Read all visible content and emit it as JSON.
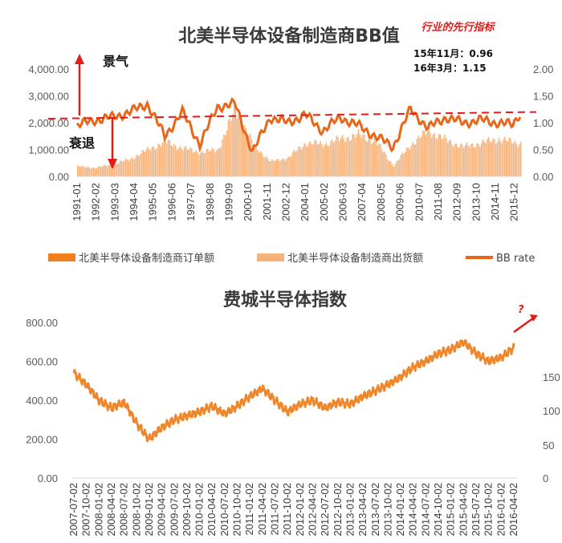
{
  "chart_data": [
    {
      "type": "bar+line",
      "title": "北美半导体设备制造商BB值",
      "annotation_tag": "行业的先行指标",
      "notes": [
        "15年11月：0.96",
        "16年3月：1.15"
      ],
      "label_up": "景气",
      "label_down": "衰退",
      "left_axis_ticks": [
        "0.00",
        "1,000.00",
        "2,000.00",
        "3,000.00",
        "4,000.00"
      ],
      "right_axis_ticks": [
        "0.00",
        "0.50",
        "1.00",
        "1.50",
        "2.00"
      ],
      "x_tick_labels": [
        "1991-01",
        "1992-02",
        "1993-03",
        "1994-04",
        "1995-05",
        "1996-06",
        "1997-07",
        "1998-08",
        "1999-09",
        "2000-10",
        "2001-11",
        "2002-12",
        "2004-01",
        "2005-02",
        "2006-03",
        "2007-04",
        "2008-05",
        "2009-06",
        "2010-07",
        "2011-08",
        "2012-09",
        "2013-10",
        "2014-11",
        "2015-12"
      ],
      "ylim_left": [
        0,
        4000
      ],
      "ylim_right": [
        0,
        2
      ],
      "reference_line_bb": 1.2,
      "legend": [
        "北美半导体设备制造商订单额",
        "北美半导体设备制造商出货额",
        "BB rate"
      ],
      "colors": {
        "orders": "#f07f1e",
        "shipments": "#f5b27a",
        "bb": "#e8661a",
        "ref": "#e41b17"
      },
      "series": [
        {
          "name": "北美半导体设备制造商出货额",
          "x": [
            "1991-01",
            "1992-01",
            "1993-01",
            "1994-01",
            "1995-01",
            "1996-01",
            "1997-01",
            "1998-01",
            "1999-01",
            "2000-01",
            "2001-01",
            "2002-01",
            "2003-01",
            "2004-01",
            "2005-01",
            "2006-01",
            "2007-01",
            "2008-01",
            "2009-01",
            "2010-01",
            "2011-01",
            "2012-01",
            "2013-01",
            "2014-01",
            "2015-01",
            "2016-01"
          ],
          "values": [
            380,
            320,
            450,
            650,
            1000,
            1300,
            1050,
            900,
            1000,
            2500,
            1200,
            550,
            700,
            1250,
            1200,
            1400,
            1550,
            1300,
            400,
            1200,
            1700,
            1350,
            1100,
            1250,
            1400,
            1250
          ]
        },
        {
          "name": "BB rate",
          "x": [
            "1991-01",
            "1992-01",
            "1993-01",
            "1994-01",
            "1995-01",
            "1996-01",
            "1997-01",
            "1998-01",
            "1999-01",
            "2000-01",
            "2001-01",
            "2002-01",
            "2003-01",
            "2004-01",
            "2005-01",
            "2006-01",
            "2007-01",
            "2008-01",
            "2009-01",
            "2010-01",
            "2011-01",
            "2012-01",
            "2013-01",
            "2014-01",
            "2015-01",
            "2015-11",
            "2016-03"
          ],
          "values": [
            0.95,
            1.05,
            1.1,
            1.2,
            1.35,
            0.75,
            1.2,
            0.6,
            1.3,
            1.35,
            0.45,
            1.1,
            1.0,
            1.15,
            0.85,
            1.1,
            0.95,
            0.75,
            0.55,
            1.25,
            0.9,
            1.1,
            1.0,
            1.05,
            1.0,
            0.96,
            1.15
          ]
        }
      ]
    },
    {
      "type": "line",
      "title": "费城半导体指数",
      "annotation": "?",
      "left_axis_ticks": [
        "0.00",
        "200.00",
        "400.00",
        "600.00",
        "800.00"
      ],
      "right_axis_ticks": [
        "0",
        "50",
        "100",
        "150"
      ],
      "ylim": [
        0,
        800
      ],
      "x_tick_labels": [
        "2007-07-02",
        "2007-10-02",
        "2008-01-02",
        "2008-04-02",
        "2008-07-02",
        "2008-10-02",
        "2009-01-02",
        "2009-04-02",
        "2009-07-02",
        "2009-10-02",
        "2010-01-02",
        "2010-04-02",
        "2010-07-02",
        "2010-10-02",
        "2011-01-02",
        "2011-04-02",
        "2011-07-02",
        "2011-10-02",
        "2012-01-02",
        "2012-04-02",
        "2012-07-02",
        "2012-10-02",
        "2013-01-02",
        "2013-04-02",
        "2013-07-02",
        "2013-10-02",
        "2014-01-02",
        "2014-04-02",
        "2014-07-02",
        "2014-10-02",
        "2015-01-02",
        "2015-04-02",
        "2015-07-02",
        "2015-10-02",
        "2016-01-02",
        "2016-04-02"
      ],
      "series": [
        {
          "name": "费城半导体指数",
          "values": [
            540,
            480,
            400,
            360,
            390,
            280,
            200,
            260,
            300,
            320,
            340,
            370,
            330,
            370,
            420,
            460,
            400,
            340,
            380,
            400,
            360,
            390,
            380,
            420,
            450,
            480,
            520,
            570,
            600,
            640,
            660,
            700,
            640,
            600,
            620,
            670
          ]
        }
      ],
      "color": "#f0862a"
    }
  ]
}
